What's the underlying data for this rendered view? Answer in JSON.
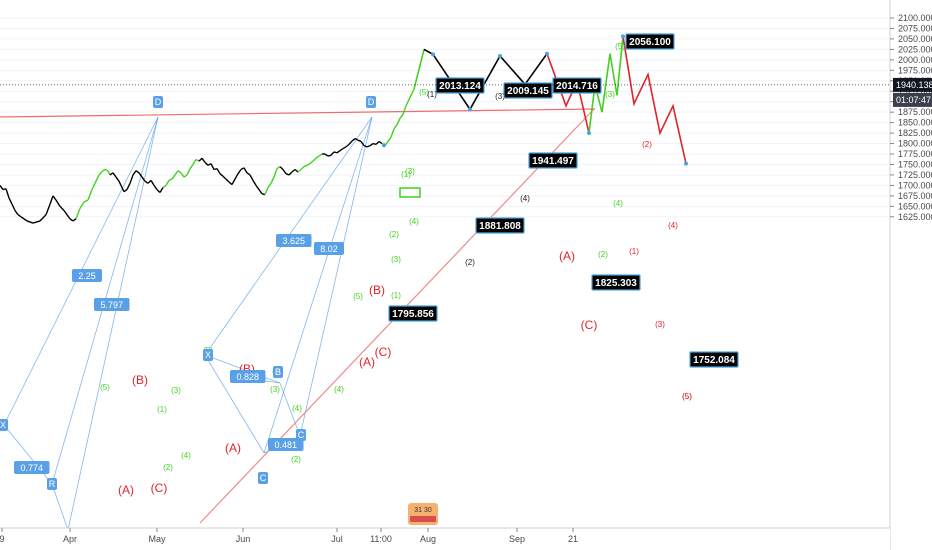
{
  "colors": {
    "green": "#42d11e",
    "red": "#e0242b",
    "black": "#000000",
    "blue": "#5aa0e6",
    "resistance": "#ef6c6c",
    "support": "#ef8a8a",
    "label_bg": "#000000",
    "label_border": "#4aa3df"
  },
  "chart_data": {
    "type": "line",
    "title": "",
    "y_axis": {
      "position": "right",
      "range": [
        1610,
        2110
      ],
      "ticks": [
        1625,
        1650,
        1675,
        1700,
        1725,
        1750,
        1775,
        1800,
        1825,
        1850,
        1875,
        1900,
        1925,
        1950,
        1975,
        2000,
        2025,
        2050,
        2075,
        2100
      ],
      "tick_labels": [
        "1625.000",
        "1650.000",
        "1675.000",
        "1700.000",
        "1725.000",
        "1750.000",
        "1775.000",
        "1800.000",
        "1825.000",
        "1850.000",
        "1875.000",
        "1900.000",
        "1925.000",
        "1950.000",
        "1975.000",
        "2000.000",
        "2025.000",
        "2050.000",
        "2075.000",
        "2100.000"
      ]
    },
    "x_axis": {
      "ticks": [
        "9",
        "Apr",
        "May",
        "Jun",
        "Jul",
        "11:00",
        "Aug",
        "Sep",
        "21"
      ]
    },
    "current_price": {
      "value": 1940.138,
      "label": "1940.138",
      "countdown": "01:07:47"
    },
    "price_series": {
      "name": "",
      "points": [
        [
          0,
          1700
        ],
        [
          3,
          1690
        ],
        [
          6,
          1692
        ],
        [
          9,
          1670
        ],
        [
          12,
          1655
        ],
        [
          15,
          1640
        ],
        [
          18,
          1630
        ],
        [
          21,
          1625
        ],
        [
          24,
          1620
        ],
        [
          27,
          1615
        ],
        [
          33,
          1610
        ],
        [
          40,
          1615
        ],
        [
          46,
          1630
        ],
        [
          50,
          1655
        ],
        [
          53,
          1675
        ],
        [
          56,
          1665
        ],
        [
          60,
          1650
        ],
        [
          64,
          1640
        ],
        [
          67,
          1630
        ],
        [
          70,
          1620
        ],
        [
          73,
          1615
        ],
        [
          76,
          1620
        ],
        [
          80,
          1645
        ],
        [
          84,
          1660
        ],
        [
          88,
          1665
        ],
        [
          92,
          1690
        ],
        [
          95,
          1705
        ],
        [
          99,
          1725
        ],
        [
          102,
          1733
        ],
        [
          105,
          1738
        ],
        [
          108,
          1735
        ],
        [
          110,
          1725
        ],
        [
          113,
          1730
        ],
        [
          116,
          1720
        ],
        [
          119,
          1710
        ],
        [
          121,
          1700
        ],
        [
          124,
          1685
        ],
        [
          127,
          1690
        ],
        [
          130,
          1705
        ],
        [
          133,
          1725
        ],
        [
          136,
          1735
        ],
        [
          139,
          1730
        ],
        [
          142,
          1720
        ],
        [
          145,
          1710
        ],
        [
          148,
          1705
        ],
        [
          151,
          1712
        ],
        [
          154,
          1700
        ],
        [
          157,
          1690
        ],
        [
          160,
          1683
        ],
        [
          163,
          1695
        ],
        [
          166,
          1700
        ],
        [
          169,
          1712
        ],
        [
          172,
          1715
        ],
        [
          175,
          1725
        ],
        [
          178,
          1735
        ],
        [
          181,
          1730
        ],
        [
          184,
          1720
        ],
        [
          187,
          1725
        ],
        [
          190,
          1740
        ],
        [
          193,
          1750
        ],
        [
          196,
          1762
        ],
        [
          199,
          1758
        ],
        [
          202,
          1765
        ],
        [
          205,
          1755
        ],
        [
          208,
          1748
        ],
        [
          211,
          1752
        ],
        [
          214,
          1738
        ],
        [
          217,
          1740
        ],
        [
          220,
          1728
        ],
        [
          223,
          1722
        ],
        [
          226,
          1715
        ],
        [
          229,
          1708
        ],
        [
          232,
          1702
        ],
        [
          235,
          1715
        ],
        [
          238,
          1728
        ],
        [
          241,
          1738
        ],
        [
          244,
          1742
        ],
        [
          247,
          1730
        ],
        [
          250,
          1725
        ],
        [
          253,
          1712
        ],
        [
          256,
          1700
        ],
        [
          259,
          1690
        ],
        [
          262,
          1680
        ],
        [
          265,
          1678
        ],
        [
          268,
          1695
        ],
        [
          271,
          1705
        ],
        [
          274,
          1720
        ],
        [
          277,
          1740
        ],
        [
          280,
          1745
        ],
        [
          283,
          1738
        ],
        [
          286,
          1728
        ],
        [
          289,
          1725
        ],
        [
          292,
          1732
        ],
        [
          295,
          1738
        ],
        [
          298,
          1732
        ],
        [
          301,
          1738
        ],
        [
          304,
          1745
        ],
        [
          307,
          1748
        ],
        [
          310,
          1752
        ],
        [
          313,
          1758
        ],
        [
          316,
          1765
        ],
        [
          319,
          1770
        ],
        [
          322,
          1775
        ],
        [
          325,
          1775
        ],
        [
          328,
          1770
        ],
        [
          331,
          1772
        ],
        [
          334,
          1780
        ],
        [
          337,
          1778
        ],
        [
          340,
          1783
        ],
        [
          343,
          1788
        ],
        [
          346,
          1792
        ],
        [
          349,
          1798
        ],
        [
          352,
          1806
        ],
        [
          355,
          1812
        ],
        [
          358,
          1808
        ],
        [
          361,
          1805
        ],
        [
          364,
          1795
        ],
        [
          367,
          1792
        ],
        [
          370,
          1795
        ],
        [
          373,
          1800
        ],
        [
          376,
          1798
        ],
        [
          379,
          1805
        ],
        [
          382,
          1800
        ],
        [
          385,
          1795
        ],
        [
          388,
          1805
        ],
        [
          391,
          1815
        ],
        [
          394,
          1835
        ],
        [
          397,
          1845
        ],
        [
          400,
          1860
        ],
        [
          403,
          1870
        ],
        [
          406,
          1890
        ],
        [
          409,
          1905
        ],
        [
          412,
          1920
        ],
        [
          414,
          1930
        ]
      ]
    },
    "series": [
      {
        "name": "",
        "color": "green",
        "role": "projection-path",
        "points": [
          [
            414,
            1930
          ],
          [
            424,
            2025
          ]
        ]
      },
      {
        "name": "",
        "color": "black",
        "role": "projection-path",
        "points": [
          [
            424,
            2025
          ],
          [
            433,
            2013.124
          ],
          [
            470,
            1881.808
          ],
          [
            500,
            2009.145
          ],
          [
            525,
            1941.497
          ],
          [
            547,
            2014.716
          ]
        ]
      },
      {
        "name": "",
        "color": "red",
        "role": "projection-path",
        "points": [
          [
            547,
            2014.716
          ],
          [
            566,
            1890
          ],
          [
            577,
            1948
          ],
          [
            589,
            1825.303
          ]
        ]
      },
      {
        "name": "",
        "color": "green",
        "role": "projection-path",
        "points": [
          [
            589,
            1825.303
          ],
          [
            595,
            1940
          ],
          [
            602,
            1875
          ],
          [
            610,
            2015
          ],
          [
            617,
            1915
          ],
          [
            623,
            2056.1
          ]
        ]
      },
      {
        "name": "",
        "color": "red",
        "role": "projection-path",
        "points": [
          [
            623,
            2056.1
          ],
          [
            634,
            1895
          ],
          [
            648,
            1965
          ],
          [
            660,
            1825
          ],
          [
            673,
            1890
          ],
          [
            686,
            1752.084
          ]
        ]
      }
    ],
    "price_labels": [
      {
        "label": "2013.124",
        "value": 2013.124
      },
      {
        "label": "2009.145",
        "value": 2009.145
      },
      {
        "label": "2014.716",
        "value": 2014.716
      },
      {
        "label": "1941.497",
        "value": 1941.497
      },
      {
        "label": "1881.808",
        "value": 1881.808
      },
      {
        "label": "1795.856",
        "value": 1795.856
      },
      {
        "label": "1825.303",
        "value": 1825.303
      },
      {
        "label": "2056.100",
        "value": 2056.1
      },
      {
        "label": "1752.084",
        "value": 1752.084
      }
    ],
    "wave_labels": {
      "green": [
        "(5)",
        "(1)",
        "(3)",
        "(4)",
        "(2)",
        "(5)",
        "(3)",
        "(1)",
        "(2)",
        "(4)",
        "(4)",
        "(5)",
        "(5)",
        "(3)",
        "(4)",
        "(1)",
        "(2)",
        "(3)",
        "(1)",
        "(5)",
        "(3)",
        "(4)",
        "(2)"
      ],
      "red": [
        "(A)",
        "(B)",
        "(C)",
        "(A)",
        "(B)",
        "C",
        "(A)",
        "(B)",
        "(C)",
        "(5)",
        "(A)",
        "(C)",
        "(2)",
        "(1)",
        "(4)",
        "(3)",
        "(5)"
      ],
      "black": [
        "(1)",
        "(2)",
        "(3)",
        "(4)"
      ]
    },
    "fib_labels": [
      "2.25",
      "5.797",
      "0.774",
      "3.625",
      "8.02",
      "0.828",
      "0.481"
    ],
    "pattern_labels": [
      "D",
      "D",
      "X",
      "R",
      "X",
      "B",
      "C",
      "C"
    ],
    "watermark": {
      "numbers": "31 30"
    }
  }
}
